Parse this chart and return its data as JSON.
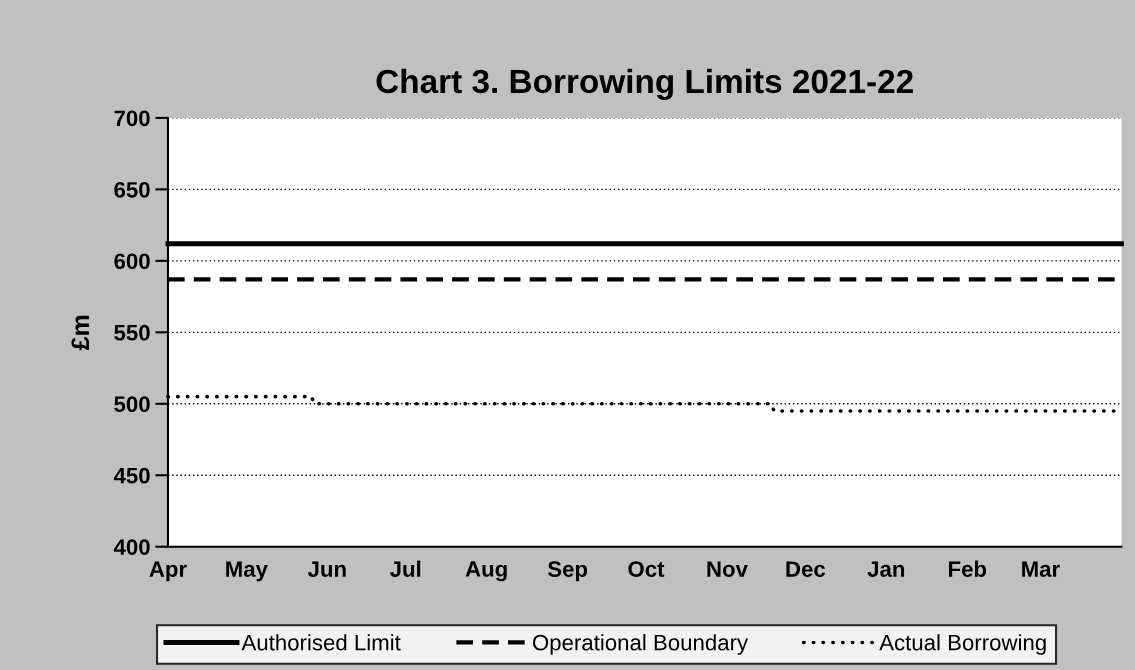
{
  "chart_data": {
    "type": "line",
    "title": "Chart 3. Borrowing Limits 2021-22",
    "ylabel": "£m",
    "xlim": [
      "2021-04-01",
      "2022-04-01"
    ],
    "xticks": [
      {
        "value": "2021-04-01",
        "label": "Apr"
      },
      {
        "value": "2021-05-01",
        "label": "May"
      },
      {
        "value": "2021-06-01",
        "label": "Jun"
      },
      {
        "value": "2021-07-01",
        "label": "Jul"
      },
      {
        "value": "2021-08-01",
        "label": "Aug"
      },
      {
        "value": "2021-09-01",
        "label": "Sep"
      },
      {
        "value": "2021-10-01",
        "label": "Oct"
      },
      {
        "value": "2021-11-01",
        "label": "Nov"
      },
      {
        "value": "2021-12-01",
        "label": "Dec"
      },
      {
        "value": "2022-01-01",
        "label": "Jan"
      },
      {
        "value": "2022-02-01",
        "label": "Feb"
      },
      {
        "value": "2022-03-01",
        "label": "Mar"
      }
    ],
    "ylim": [
      400,
      700
    ],
    "yticks": [
      400,
      450,
      500,
      550,
      600,
      650,
      700
    ],
    "grid": "y",
    "legend": "bottom",
    "marker": "none",
    "series": [
      {
        "name": "Authorised Limit",
        "color": "#000000",
        "line_style": "solid",
        "x": [
          "2021-04-01",
          "2022-04-01"
        ],
        "values": [
          612,
          612
        ]
      },
      {
        "name": "Operational Boundary",
        "color": "#000000",
        "line_style": "dashed",
        "x": [
          "2021-04-01",
          "2022-04-01"
        ],
        "values": [
          587,
          587
        ]
      },
      {
        "name": "Actual Borrowing",
        "color": "#000000",
        "line_style": "dotted",
        "x": [
          "2021-04-01",
          "2021-05-26",
          "2021-05-27",
          "2021-11-18",
          "2021-11-19",
          "2022-04-01"
        ],
        "values": [
          505,
          505,
          500,
          500,
          495,
          495
        ]
      }
    ]
  }
}
